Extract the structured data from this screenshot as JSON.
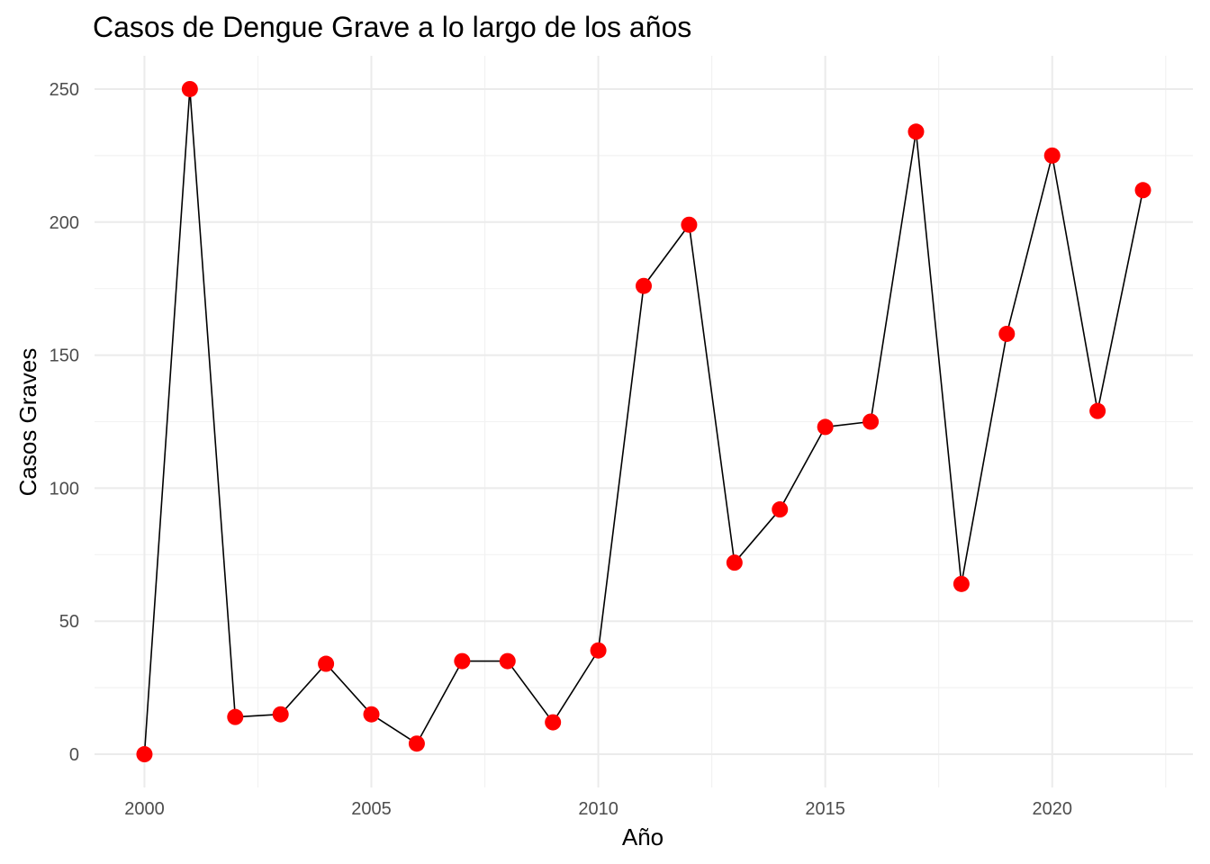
{
  "chart_data": {
    "type": "line",
    "title": "Casos de Dengue Grave a lo largo de los años",
    "xlabel": "Año",
    "ylabel": "Casos Graves",
    "x": [
      2000,
      2001,
      2002,
      2003,
      2004,
      2005,
      2006,
      2007,
      2008,
      2009,
      2010,
      2011,
      2012,
      2013,
      2014,
      2015,
      2016,
      2017,
      2018,
      2019,
      2020,
      2021,
      2022
    ],
    "series": [
      {
        "values": [
          0,
          250,
          14,
          15,
          34,
          15,
          4,
          35,
          35,
          12,
          39,
          176,
          199,
          72,
          92,
          123,
          125,
          234,
          64,
          158,
          225,
          129,
          212
        ],
        "line_color": "#000000",
        "marker_color": "#ff0000",
        "markers": true
      }
    ],
    "x_ticks": [
      "2000",
      "2005",
      "2010",
      "2015",
      "2020"
    ],
    "x_tick_values": [
      2000,
      2005,
      2010,
      2015,
      2020
    ],
    "y_ticks": [
      "0",
      "50",
      "100",
      "150",
      "200",
      "250"
    ],
    "y_tick_values": [
      0,
      50,
      100,
      150,
      200,
      250
    ],
    "xlim": [
      1998.9,
      2023.1
    ],
    "ylim": [
      -12.5,
      262.5
    ],
    "grid": true,
    "legend": "none"
  }
}
